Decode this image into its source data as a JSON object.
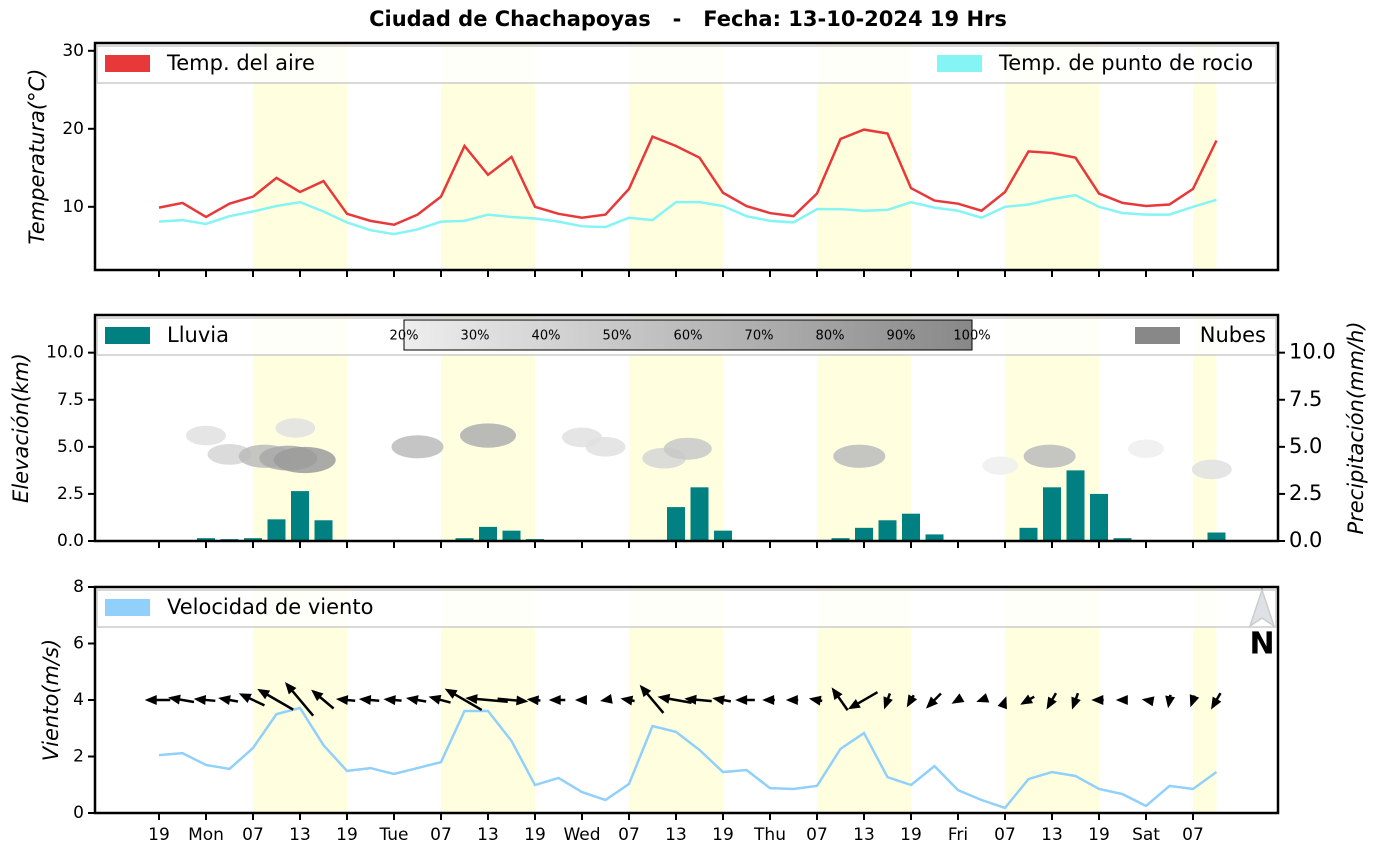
{
  "title": "Ciudad de Chachapoyas   -   Fecha: 13-10-2024 19 Hrs",
  "chart_data": [
    {
      "type": "line",
      "ylabel": "Temperatura(°C)",
      "ylim": [
        1.9,
        31
      ],
      "yticks": [
        10,
        20,
        30
      ],
      "series": [
        {
          "name": "Temp. del aire",
          "color": "#e8393a",
          "values": [
            9.9,
            10.5,
            8.7,
            10.4,
            11.3,
            13.7,
            11.9,
            13.3,
            9.1,
            8.2,
            7.7,
            9.0,
            11.3,
            17.8,
            14.1,
            16.4,
            10.0,
            9.1,
            8.6,
            9.0,
            12.3,
            19.0,
            17.8,
            16.3,
            11.8,
            10.1,
            9.2,
            8.8,
            11.7,
            18.7,
            19.9,
            19.4,
            12.4,
            10.8,
            10.4,
            9.5,
            11.9,
            17.1,
            16.9,
            16.3,
            11.7,
            10.5,
            10.1,
            10.3,
            12.3,
            18.5
          ]
        },
        {
          "name": "Temp. de punto de rocio",
          "color": "#84f4f4",
          "values": [
            8.1,
            8.3,
            7.8,
            8.8,
            9.4,
            10.1,
            10.6,
            9.4,
            8.0,
            7.0,
            6.5,
            7.1,
            8.1,
            8.2,
            9.0,
            8.7,
            8.5,
            8.1,
            7.5,
            7.4,
            8.6,
            8.3,
            10.6,
            10.6,
            10.1,
            8.8,
            8.2,
            8.0,
            9.7,
            9.7,
            9.5,
            9.6,
            10.6,
            9.9,
            9.5,
            8.6,
            10.0,
            10.3,
            11.0,
            11.5,
            10.0,
            9.2,
            9.0,
            9.0,
            10.0,
            10.9
          ]
        }
      ]
    },
    {
      "type": "bar",
      "ylabel": "Elevación(km)",
      "y2label": "Precipitación(mm/h)",
      "ylim": [
        0,
        12
      ],
      "yticks": [
        {
          "value": 0,
          "label": "0.0"
        },
        {
          "value": 2.5,
          "label": "2.5"
        },
        {
          "value": 5,
          "label": "5.0"
        },
        {
          "value": 7.5,
          "label": "7.5"
        },
        {
          "value": 10,
          "label": "10.0"
        }
      ],
      "y2lim": [
        0,
        12
      ],
      "y2ticks": [
        {
          "value": 0,
          "label": "0.0"
        },
        {
          "value": 2.5,
          "label": "2.5"
        },
        {
          "value": 5,
          "label": "5.0"
        },
        {
          "value": 7.5,
          "label": "7.5"
        },
        {
          "value": 10,
          "label": "10.0"
        }
      ],
      "series": [
        {
          "name": "Lluvia",
          "color": "#008080",
          "axis": "y2",
          "values": [
            0,
            0,
            0.15,
            0.1,
            0.15,
            1.15,
            2.65,
            1.1,
            0.05,
            0,
            0,
            0,
            0,
            0.15,
            0.75,
            0.55,
            0.1,
            0.05,
            0,
            0,
            0,
            0.05,
            1.8,
            2.85,
            0.55,
            0,
            0,
            0.05,
            0.05,
            0.15,
            0.7,
            1.1,
            1.45,
            0.35,
            0.05,
            0.05,
            0,
            0.7,
            2.85,
            3.75,
            2.5,
            0.15,
            0,
            0,
            0,
            0.45
          ]
        }
      ],
      "clouds": {
        "name": "Nubes",
        "color": "#888888",
        "lim": [
          20,
          100
        ],
        "ticks": [
          {
            "value": 20,
            "label": "20%"
          },
          {
            "value": 30,
            "label": "30%"
          },
          {
            "value": 40,
            "label": "40%"
          },
          {
            "value": 50,
            "label": "50%"
          },
          {
            "value": 60,
            "label": "60%"
          },
          {
            "value": 70,
            "label": "70%"
          },
          {
            "value": 80,
            "label": "80%"
          },
          {
            "value": 90,
            "label": "90%"
          },
          {
            "value": 100,
            "label": "100%"
          }
        ],
        "points": [
          {
            "x": 2,
            "elevation": 5.6,
            "cover": 30
          },
          {
            "x": 3,
            "elevation": 4.6,
            "cover": 40
          },
          {
            "x": 4.5,
            "elevation": 4.5,
            "cover": 60
          },
          {
            "x": 5.5,
            "elevation": 4.4,
            "cover": 75
          },
          {
            "x": 5.8,
            "elevation": 6.0,
            "cover": 30
          },
          {
            "x": 6.2,
            "elevation": 4.3,
            "cover": 85
          },
          {
            "x": 11,
            "elevation": 5.0,
            "cover": 60
          },
          {
            "x": 14,
            "elevation": 5.6,
            "cover": 70
          },
          {
            "x": 18,
            "elevation": 5.5,
            "cover": 30
          },
          {
            "x": 19,
            "elevation": 5.0,
            "cover": 30
          },
          {
            "x": 21.5,
            "elevation": 4.4,
            "cover": 40
          },
          {
            "x": 22.5,
            "elevation": 4.9,
            "cover": 50
          },
          {
            "x": 29.8,
            "elevation": 4.5,
            "cover": 60
          },
          {
            "x": 35.8,
            "elevation": 4.0,
            "cover": 20
          },
          {
            "x": 37.9,
            "elevation": 4.5,
            "cover": 60
          },
          {
            "x": 42,
            "elevation": 4.9,
            "cover": 20
          },
          {
            "x": 44.8,
            "elevation": 3.8,
            "cover": 30
          }
        ]
      }
    },
    {
      "type": "line",
      "ylabel": "Viento(m/s)",
      "ylim": [
        0,
        8
      ],
      "yticks": [
        0,
        2,
        4,
        6,
        8
      ],
      "categories": [
        "19",
        null,
        "Mon",
        null,
        "07",
        null,
        "13",
        null,
        "19",
        null,
        "Tue",
        null,
        "07",
        null,
        "13",
        null,
        "19",
        null,
        "Wed",
        null,
        "07",
        null,
        "13",
        null,
        "19",
        null,
        "Thu",
        null,
        "07",
        null,
        "13",
        null,
        "19",
        null,
        "Fri",
        null,
        "07",
        null,
        "13",
        null,
        "19",
        null,
        "Sat",
        null,
        "07",
        null
      ],
      "series": [
        {
          "name": "Velocidad de viento",
          "color": "#90d0fa",
          "values": [
            2.05,
            2.12,
            1.7,
            1.56,
            2.3,
            3.5,
            3.72,
            2.4,
            1.49,
            1.59,
            1.38,
            1.59,
            1.8,
            3.61,
            3.61,
            2.55,
            0.99,
            1.24,
            0.74,
            0.46,
            1.03,
            3.08,
            2.87,
            2.23,
            1.45,
            1.52,
            0.88,
            0.85,
            0.96,
            2.27,
            2.83,
            1.27,
            0.99,
            1.66,
            0.81,
            0.46,
            0.18,
            1.2,
            1.45,
            1.31,
            0.85,
            0.67,
            0.25,
            0.96,
            0.85,
            1.45
          ]
        }
      ],
      "wind_direction": [
        90,
        100,
        95,
        100,
        115,
        120,
        140,
        130,
        95,
        95,
        95,
        100,
        105,
        120,
        95,
        275,
        95,
        90,
        90,
        80,
        100,
        140,
        100,
        95,
        100,
        90,
        90,
        90,
        100,
        145,
        60,
        20,
        30,
        45,
        60,
        70,
        200,
        60,
        30,
        20,
        90,
        90,
        100,
        10,
        20,
        30
      ],
      "north_label": "N"
    }
  ]
}
